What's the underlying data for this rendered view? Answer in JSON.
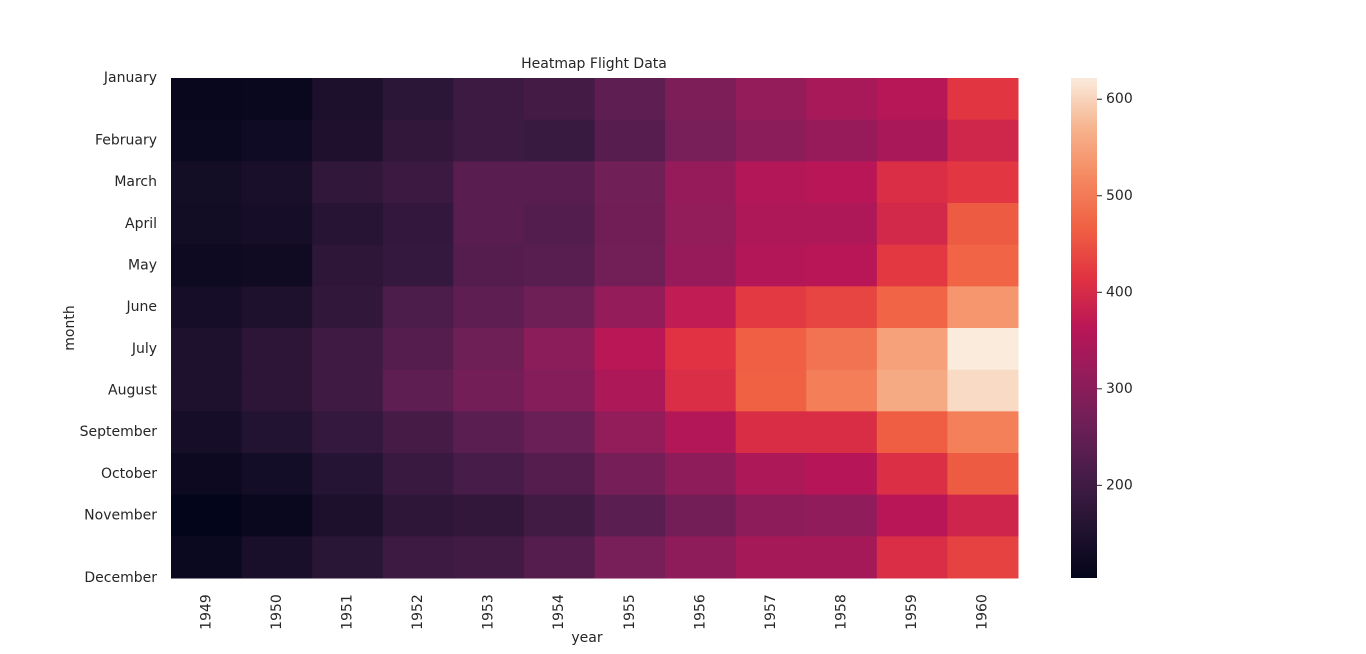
{
  "chart_data": {
    "type": "heatmap",
    "title": "Heatmap Flight Data",
    "x_label": "year",
    "y_label": "month",
    "x_categories": [
      "1949",
      "1950",
      "1951",
      "1952",
      "1953",
      "1954",
      "1955",
      "1956",
      "1957",
      "1958",
      "1959",
      "1960"
    ],
    "y_categories": [
      "January",
      "February",
      "March",
      "April",
      "May",
      "June",
      "July",
      "August",
      "September",
      "October",
      "November",
      "December"
    ],
    "values": [
      [
        112,
        115,
        145,
        171,
        196,
        204,
        242,
        284,
        315,
        340,
        360,
        417
      ],
      [
        118,
        126,
        150,
        180,
        196,
        188,
        233,
        277,
        301,
        318,
        342,
        391
      ],
      [
        132,
        141,
        178,
        193,
        236,
        235,
        267,
        317,
        356,
        362,
        406,
        419
      ],
      [
        129,
        135,
        163,
        181,
        235,
        227,
        269,
        313,
        348,
        348,
        396,
        461
      ],
      [
        121,
        125,
        172,
        183,
        229,
        234,
        270,
        318,
        355,
        363,
        420,
        472
      ],
      [
        135,
        149,
        178,
        218,
        243,
        264,
        315,
        374,
        422,
        435,
        472,
        535
      ],
      [
        148,
        170,
        199,
        230,
        264,
        302,
        364,
        413,
        465,
        491,
        548,
        622
      ],
      [
        148,
        170,
        199,
        242,
        272,
        293,
        347,
        405,
        467,
        505,
        559,
        606
      ],
      [
        136,
        158,
        184,
        209,
        237,
        259,
        312,
        355,
        404,
        404,
        463,
        508
      ],
      [
        119,
        133,
        162,
        191,
        211,
        229,
        274,
        306,
        347,
        359,
        407,
        461
      ],
      [
        104,
        114,
        146,
        172,
        180,
        203,
        237,
        271,
        305,
        310,
        362,
        390
      ],
      [
        118,
        140,
        166,
        194,
        201,
        229,
        278,
        306,
        336,
        337,
        405,
        432
      ]
    ],
    "colormap": "rocket",
    "zlim": [
      104,
      622
    ],
    "zticks": [
      200,
      300,
      400,
      500,
      600
    ]
  }
}
